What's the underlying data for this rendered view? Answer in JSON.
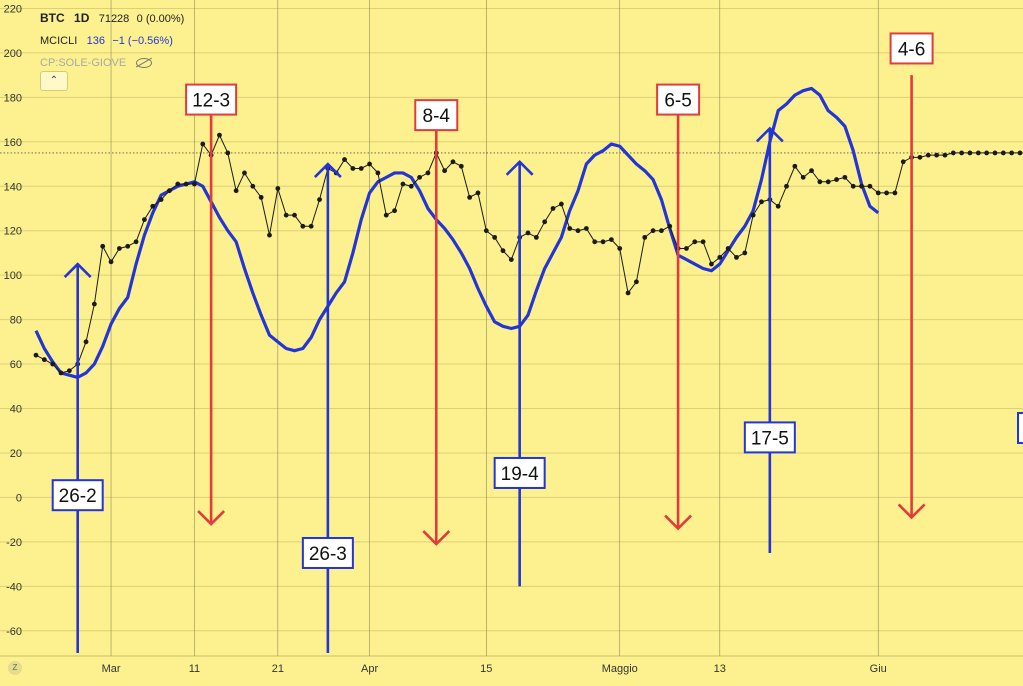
{
  "legend": {
    "symbol": "BTC",
    "interval": "1D",
    "price": "71228",
    "change": "0 (0.00%)",
    "indicator_name": "MCICLI",
    "indicator_value": "136",
    "indicator_change": "−1 (−0.56%)",
    "overlay_name": "CP:SOLE-GIOVE",
    "collapse_symbol": "⌃"
  },
  "timezone_badge": "Z",
  "colors": {
    "background": "#fdf18f",
    "price_line": "#1a1a1a",
    "cycle_line": "#2335d6",
    "up_arrow": "#2335d6",
    "down_arrow": "#e23b3b"
  },
  "chart_data": {
    "type": "line",
    "y_axis": {
      "range": [
        -70,
        222
      ],
      "ticks": [
        220,
        200,
        180,
        160,
        140,
        120,
        100,
        80,
        60,
        40,
        20,
        0,
        -20,
        -40,
        -60
      ],
      "grid": true
    },
    "x_axis": {
      "range": [
        0,
        118
      ],
      "ticks": [
        {
          "x": 9,
          "label": "Mar"
        },
        {
          "x": 19,
          "label": "11"
        },
        {
          "x": 29,
          "label": "21"
        },
        {
          "x": 40,
          "label": "Apr"
        },
        {
          "x": 54,
          "label": "15"
        },
        {
          "x": 70,
          "label": "Maggio"
        },
        {
          "x": 82,
          "label": "13"
        },
        {
          "x": 101,
          "label": "Giu"
        }
      ]
    },
    "reference_line": 155,
    "series": [
      {
        "type": "line-markers",
        "values": [
          [
            0,
            64
          ],
          [
            1,
            62
          ],
          [
            2,
            60
          ],
          [
            3,
            56
          ],
          [
            4,
            57
          ],
          [
            5,
            60
          ],
          [
            6,
            70
          ],
          [
            7,
            87
          ],
          [
            8,
            113
          ],
          [
            9,
            106
          ],
          [
            10,
            112
          ],
          [
            11,
            113
          ],
          [
            12,
            115
          ],
          [
            13,
            125
          ],
          [
            14,
            131
          ],
          [
            15,
            134
          ],
          [
            16,
            138
          ],
          [
            17,
            141
          ],
          [
            18,
            141
          ],
          [
            19,
            141
          ],
          [
            20,
            159
          ],
          [
            21,
            154
          ],
          [
            22,
            163
          ],
          [
            23,
            155
          ],
          [
            24,
            138
          ],
          [
            25,
            146
          ],
          [
            26,
            140
          ],
          [
            27,
            135
          ],
          [
            28,
            118
          ],
          [
            29,
            139
          ],
          [
            30,
            127
          ],
          [
            31,
            127
          ],
          [
            32,
            122
          ],
          [
            33,
            122
          ],
          [
            34,
            134
          ],
          [
            35,
            148
          ],
          [
            36,
            146
          ],
          [
            37,
            152
          ],
          [
            38,
            148
          ],
          [
            39,
            148
          ],
          [
            40,
            150
          ],
          [
            41,
            146
          ],
          [
            42,
            127
          ],
          [
            43,
            129
          ],
          [
            44,
            141
          ],
          [
            45,
            140
          ],
          [
            46,
            144
          ],
          [
            47,
            146
          ],
          [
            48,
            155
          ],
          [
            49,
            147
          ],
          [
            50,
            151
          ],
          [
            51,
            149
          ],
          [
            52,
            135
          ],
          [
            53,
            137
          ],
          [
            54,
            120
          ],
          [
            55,
            117
          ],
          [
            56,
            111
          ],
          [
            57,
            107
          ],
          [
            58,
            117
          ],
          [
            59,
            119
          ],
          [
            60,
            117
          ],
          [
            61,
            124
          ],
          [
            62,
            130
          ],
          [
            63,
            132
          ],
          [
            64,
            121
          ],
          [
            65,
            120
          ],
          [
            66,
            121
          ],
          [
            67,
            115
          ],
          [
            68,
            115
          ],
          [
            69,
            116
          ],
          [
            70,
            112
          ],
          [
            71,
            92
          ],
          [
            72,
            97
          ],
          [
            73,
            117
          ],
          [
            74,
            120
          ],
          [
            75,
            120
          ],
          [
            76,
            122
          ],
          [
            77,
            112
          ],
          [
            78,
            112
          ],
          [
            79,
            115
          ],
          [
            80,
            115
          ],
          [
            81,
            105
          ],
          [
            82,
            108
          ],
          [
            83,
            112
          ],
          [
            84,
            108
          ],
          [
            85,
            110
          ],
          [
            86,
            127
          ],
          [
            87,
            133
          ],
          [
            88,
            134
          ],
          [
            89,
            131
          ],
          [
            90,
            140
          ],
          [
            91,
            149
          ],
          [
            92,
            144
          ],
          [
            93,
            147
          ],
          [
            94,
            142
          ],
          [
            95,
            142
          ],
          [
            96,
            143
          ],
          [
            97,
            144
          ],
          [
            98,
            140
          ],
          [
            99,
            140
          ],
          [
            100,
            140
          ],
          [
            101,
            137
          ],
          [
            102,
            137
          ],
          [
            103,
            137
          ],
          [
            104,
            151
          ],
          [
            105,
            153
          ],
          [
            106,
            153
          ],
          [
            107,
            154
          ],
          [
            108,
            154
          ],
          [
            109,
            154
          ],
          [
            110,
            155
          ],
          [
            111,
            155
          ],
          [
            112,
            155
          ],
          [
            113,
            155
          ],
          [
            114,
            155
          ],
          [
            115,
            155
          ],
          [
            116,
            155
          ],
          [
            117,
            155
          ],
          [
            118,
            155
          ]
        ]
      },
      {
        "type": "line",
        "values": [
          [
            0,
            75
          ],
          [
            1,
            67
          ],
          [
            2,
            61
          ],
          [
            3,
            56
          ],
          [
            4,
            55
          ],
          [
            5,
            54
          ],
          [
            6,
            56
          ],
          [
            7,
            60
          ],
          [
            8,
            68
          ],
          [
            9,
            78
          ],
          [
            10,
            85
          ],
          [
            11,
            90
          ],
          [
            12,
            105
          ],
          [
            13,
            118
          ],
          [
            14,
            128
          ],
          [
            15,
            136
          ],
          [
            16,
            138
          ],
          [
            17,
            140
          ],
          [
            18,
            141
          ],
          [
            19,
            142
          ],
          [
            20,
            140
          ],
          [
            21,
            133
          ],
          [
            22,
            126
          ],
          [
            23,
            120
          ],
          [
            24,
            115
          ],
          [
            25,
            103
          ],
          [
            26,
            92
          ],
          [
            27,
            82
          ],
          [
            28,
            73
          ],
          [
            29,
            70
          ],
          [
            30,
            67
          ],
          [
            31,
            66
          ],
          [
            32,
            67
          ],
          [
            33,
            72
          ],
          [
            34,
            80
          ],
          [
            35,
            86
          ],
          [
            36,
            92
          ],
          [
            37,
            97
          ],
          [
            38,
            110
          ],
          [
            39,
            125
          ],
          [
            40,
            137
          ],
          [
            41,
            142
          ],
          [
            42,
            144
          ],
          [
            43,
            146
          ],
          [
            44,
            146
          ],
          [
            45,
            144
          ],
          [
            46,
            138
          ],
          [
            47,
            130
          ],
          [
            48,
            125
          ],
          [
            49,
            121
          ],
          [
            50,
            116
          ],
          [
            51,
            110
          ],
          [
            52,
            103
          ],
          [
            53,
            94
          ],
          [
            54,
            86
          ],
          [
            55,
            79
          ],
          [
            56,
            77
          ],
          [
            57,
            76
          ],
          [
            58,
            77
          ],
          [
            59,
            82
          ],
          [
            60,
            93
          ],
          [
            61,
            103
          ],
          [
            62,
            110
          ],
          [
            63,
            117
          ],
          [
            64,
            129
          ],
          [
            65,
            138
          ],
          [
            66,
            150
          ],
          [
            67,
            154
          ],
          [
            68,
            156
          ],
          [
            69,
            159
          ],
          [
            70,
            158
          ],
          [
            71,
            154
          ],
          [
            72,
            150
          ],
          [
            73,
            147
          ],
          [
            74,
            143
          ],
          [
            75,
            134
          ],
          [
            76,
            121
          ],
          [
            77,
            109
          ],
          [
            78,
            107
          ],
          [
            79,
            105
          ],
          [
            80,
            103
          ],
          [
            81,
            102
          ],
          [
            82,
            105
          ],
          [
            83,
            111
          ],
          [
            84,
            117
          ],
          [
            85,
            122
          ],
          [
            86,
            129
          ],
          [
            87,
            143
          ],
          [
            88,
            160
          ],
          [
            89,
            174
          ],
          [
            90,
            177
          ],
          [
            91,
            181
          ],
          [
            92,
            183
          ],
          [
            93,
            184
          ],
          [
            94,
            181
          ],
          [
            95,
            174
          ],
          [
            96,
            171
          ],
          [
            97,
            167
          ],
          [
            98,
            156
          ],
          [
            99,
            141
          ],
          [
            100,
            131
          ],
          [
            101,
            128
          ]
        ]
      }
    ],
    "annotations": [
      {
        "label": "26-2",
        "x": 5,
        "direction": "up",
        "color": "blue",
        "y_start": -70,
        "y_end": 105,
        "label_y": 1
      },
      {
        "label": "12-3",
        "x": 21,
        "direction": "down",
        "color": "red",
        "y_start": 174,
        "y_end": -12,
        "label_y": 179
      },
      {
        "label": "26-3",
        "x": 35,
        "direction": "up",
        "color": "blue",
        "y_start": -70,
        "y_end": 150,
        "label_y": -25
      },
      {
        "label": "8-4",
        "x": 48,
        "direction": "down",
        "color": "red",
        "y_start": 168,
        "y_end": -21,
        "label_y": 172
      },
      {
        "label": "19-4",
        "x": 58,
        "direction": "up",
        "color": "blue",
        "y_start": -40,
        "y_end": 151,
        "label_y": 11
      },
      {
        "label": "6-5",
        "x": 77,
        "direction": "down",
        "color": "red",
        "y_start": 174,
        "y_end": -14,
        "label_y": 179
      },
      {
        "label": "17-5",
        "x": 88,
        "direction": "up",
        "color": "blue",
        "y_start": -25,
        "y_end": 166,
        "label_y": 27
      },
      {
        "label": "4-6",
        "x": 105,
        "direction": "down",
        "color": "red",
        "y_start": 190,
        "y_end": -9,
        "label_y": 202
      }
    ]
  }
}
